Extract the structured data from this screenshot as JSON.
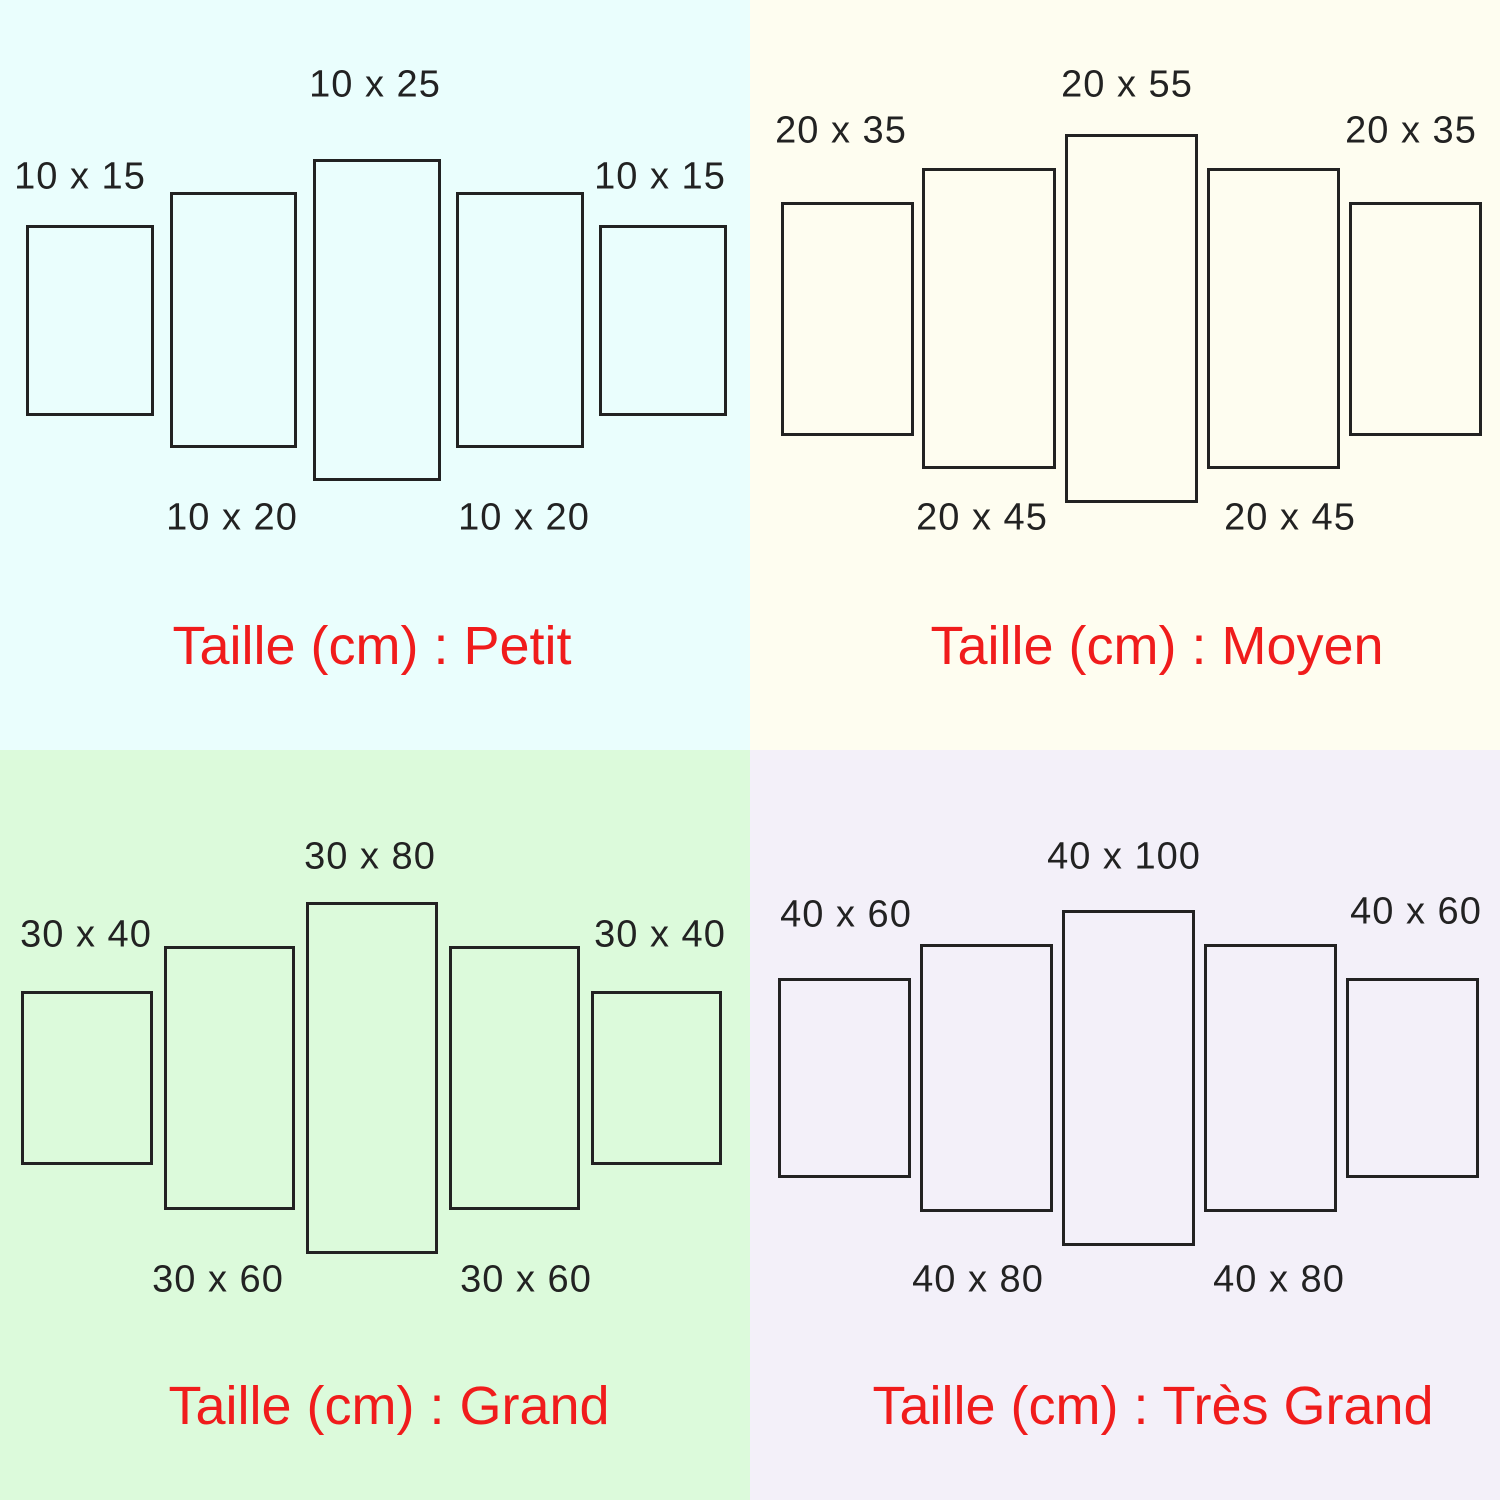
{
  "colors": {
    "title": "#f01c1c",
    "outline": "#222222"
  },
  "quadrants": [
    {
      "id": "petit",
      "background": "#eafefd",
      "title": "Taille (cm) : Petit",
      "labels": [
        "10 x 15",
        "10 x 20",
        "10 x 25",
        "10 x 20",
        "10 x 15"
      ]
    },
    {
      "id": "moyen",
      "background": "#fefdf0",
      "title": "Taille (cm) : Moyen",
      "labels": [
        "20 x 35",
        "20 x 45",
        "20 x 55",
        "20 x 45",
        "20 x 35"
      ]
    },
    {
      "id": "grand",
      "background": "#dcfadb",
      "title": "Taille (cm) : Grand",
      "labels": [
        "30 x 40",
        "30 x 60",
        "30 x 80",
        "30 x 60",
        "30 x 40"
      ]
    },
    {
      "id": "tres-grand",
      "background": "#f3f0f9",
      "title": "Taille (cm) : Très Grand",
      "labels": [
        "40 x 60",
        "40 x 80",
        "40 x 100",
        "40 x 80",
        "40 x 60"
      ]
    }
  ]
}
